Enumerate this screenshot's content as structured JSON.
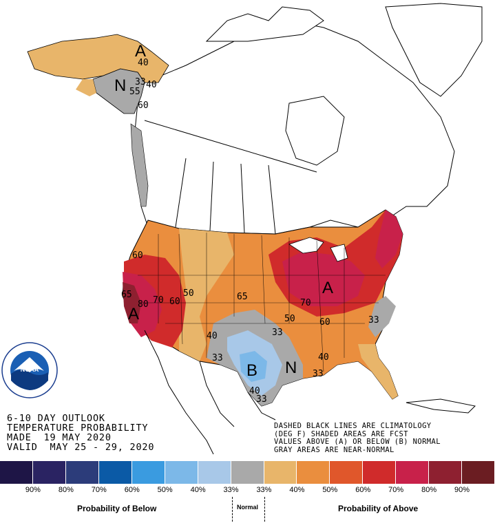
{
  "title_lines": [
    "6-10 DAY OUTLOOK",
    "TEMPERATURE PROBABILITY",
    "MADE  19 MAY 2020",
    "VALID  MAY 25 - 29, 2020"
  ],
  "note_lines": [
    "DASHED BLACK LINES ARE CLIMATOLOGY",
    "(DEG F) SHADED AREAS ARE FCST",
    "VALUES ABOVE (A) OR BELOW (B) NORMAL",
    "GRAY AREAS ARE NEAR-NORMAL"
  ],
  "logo_text": "NOAA",
  "legend": {
    "swatches": [
      {
        "color": "#1e1546"
      },
      {
        "color": "#2a2362"
      },
      {
        "color": "#2c3c7a"
      },
      {
        "color": "#0b5aa6"
      },
      {
        "color": "#3a9be0"
      },
      {
        "color": "#7cb8e8"
      },
      {
        "color": "#a8c8e8"
      },
      {
        "color": "#a9a9a9"
      },
      {
        "color": "#e8b56a"
      },
      {
        "color": "#ea8e3e"
      },
      {
        "color": "#e0572b"
      },
      {
        "color": "#d02b2b"
      },
      {
        "color": "#c8214a"
      },
      {
        "color": "#8e2030"
      },
      {
        "color": "#6b1d22"
      }
    ],
    "labels": [
      "90%",
      "80%",
      "70%",
      "60%",
      "50%",
      "40%",
      "33%",
      "33%",
      "40%",
      "50%",
      "60%",
      "70%",
      "80%",
      "90%"
    ],
    "below_caption": "Probability of Below",
    "normal_caption": "Normal",
    "above_caption": "Probability of Above"
  },
  "map_labels": {
    "alaska_above": "A",
    "alaska_normal": "N",
    "west_above": "A",
    "east_above": "A",
    "texas_below": "B",
    "texas_normal": "N",
    "v40_ak": "40",
    "v33_ak": "33",
    "v55_ak": "55",
    "v40_ak2": "40",
    "v60_ak": "60",
    "v60_w": "60",
    "v65_w": "65",
    "v80_w": "80",
    "v70_w": "70",
    "v60_w2": "60",
    "v50_w": "50",
    "v65_c": "65",
    "v70_e": "70",
    "v50_c": "50",
    "v60_e": "60",
    "v33_e": "33",
    "v40_c": "40",
    "v33_c": "33",
    "v33_t": "33",
    "v40_t": "40",
    "v33_t2": "33",
    "v40_se": "40",
    "v33_se": "33"
  }
}
